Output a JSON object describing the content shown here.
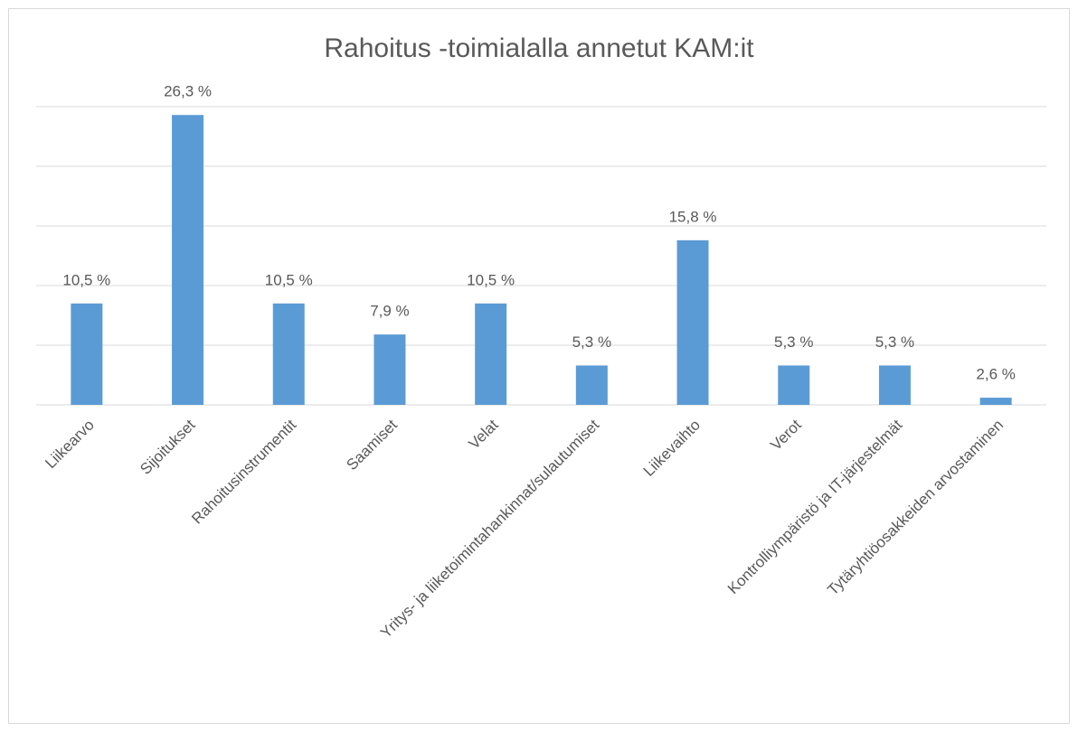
{
  "chart_data": {
    "type": "bar",
    "title": "Rahoitus -toimialalla annetut KAM:it",
    "categories": [
      "Liikearvo",
      "Sijoitukset",
      "Rahoitusinstrumentit",
      "Saamiset",
      "Velat",
      "Yritys- ja liiketoimintahankinnat/sulautumiset",
      "Liikevaihto",
      "Verot",
      "Kontrolliympäristö ja IT-järjestelmät",
      "Tytäryhtiöosakkeiden arvostaminen"
    ],
    "values": [
      10.5,
      26.3,
      10.5,
      7.9,
      10.5,
      5.3,
      15.8,
      5.3,
      5.3,
      2.6
    ],
    "value_labels": [
      "10,5 %",
      "26,3 %",
      "10,5 %",
      "7,9 %",
      "10,5 %",
      "5,3 %",
      "15,8 %",
      "5,3 %",
      "5,3 %",
      "2,6 %"
    ],
    "color": "#5b9bd5",
    "ylim": [
      2,
      27
    ],
    "yticks": [
      2,
      7,
      12,
      17,
      22,
      27
    ],
    "grid": true
  }
}
